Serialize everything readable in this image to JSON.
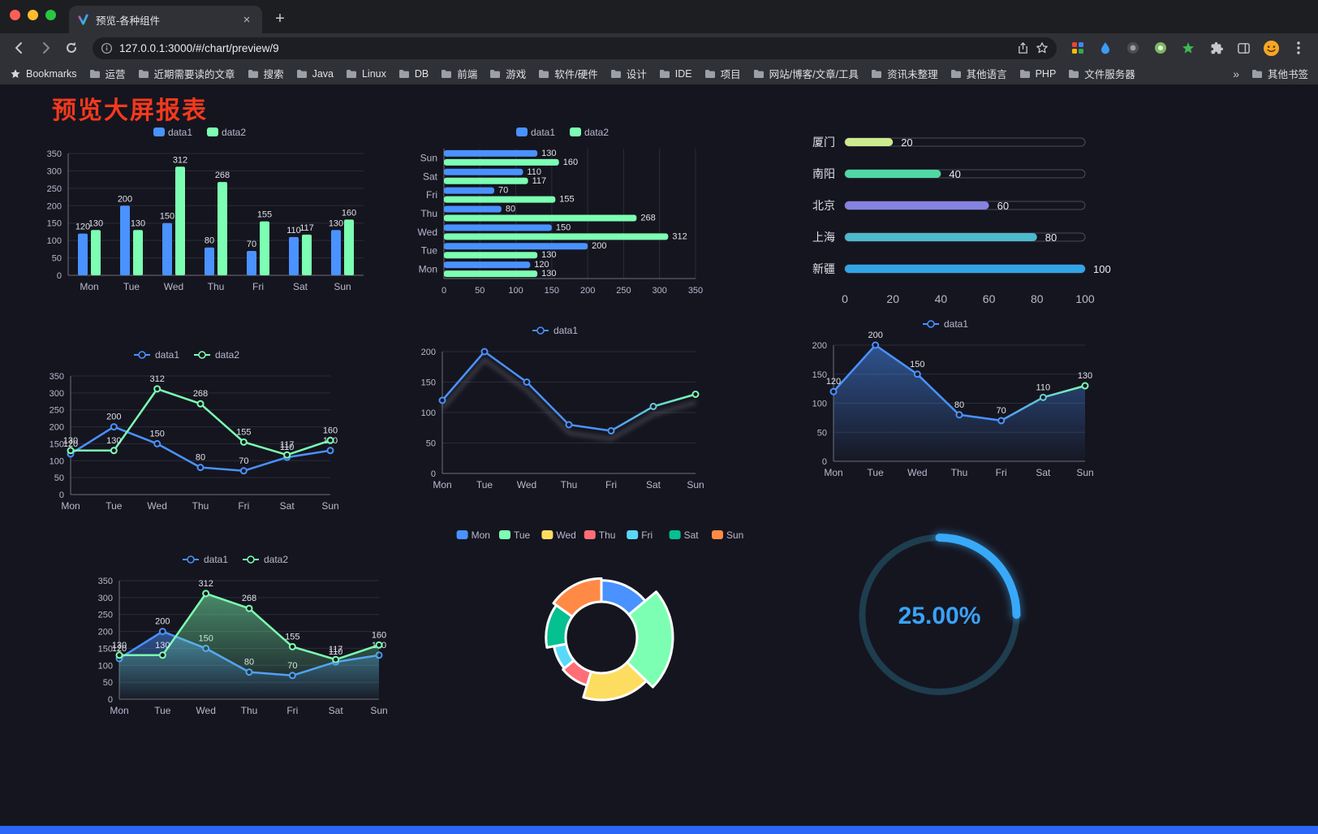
{
  "browser": {
    "tab_title": "预览-各种组件",
    "url": "127.0.0.1:3000/#/chart/preview/9",
    "bookmarks": {
      "label": "Bookmarks",
      "items": [
        "运营",
        "近期需要读的文章",
        "搜索",
        "Java",
        "Linux",
        "DB",
        "前端",
        "游戏",
        "软件/硬件",
        "设计",
        "IDE",
        "项目",
        "网站/博客/文章/工具",
        "资讯未整理",
        "其他语言",
        "PHP",
        "文件服务器"
      ],
      "overflow": "»",
      "other": "其他书签"
    }
  },
  "page": {
    "title": "预览大屏报表"
  },
  "chart_data": [
    {
      "id": "bar-grouped",
      "type": "bar",
      "categories": [
        "Mon",
        "Tue",
        "Wed",
        "Thu",
        "Fri",
        "Sat",
        "Sun"
      ],
      "series": [
        {
          "name": "data1",
          "color": "#4992ff",
          "values": [
            120,
            200,
            150,
            80,
            70,
            110,
            130
          ]
        },
        {
          "name": "data2",
          "color": "#7cffb2",
          "values": [
            130,
            130,
            312,
            268,
            155,
            117,
            160
          ]
        }
      ],
      "ylim": [
        0,
        350
      ],
      "ytick": 50,
      "legend_position": "top",
      "grid": true
    },
    {
      "id": "bar-horizontal",
      "type": "hbar",
      "categories": [
        "Mon",
        "Tue",
        "Wed",
        "Thu",
        "Fri",
        "Sat",
        "Sun"
      ],
      "series": [
        {
          "name": "data1",
          "color": "#4992ff",
          "values": [
            120,
            200,
            150,
            80,
            70,
            110,
            130
          ]
        },
        {
          "name": "data2",
          "color": "#7cffb2",
          "values": [
            130,
            130,
            312,
            268,
            155,
            117,
            160
          ]
        }
      ],
      "xlim": [
        0,
        350
      ],
      "xtick": 50,
      "legend_position": "top"
    },
    {
      "id": "progress-bars",
      "type": "progress",
      "max": 100,
      "items": [
        {
          "label": "厦门",
          "value": 20,
          "color": "#cdeb8e"
        },
        {
          "label": "南阳",
          "value": 40,
          "color": "#4fd9a4"
        },
        {
          "label": "北京",
          "value": 60,
          "color": "#8583e1"
        },
        {
          "label": "上海",
          "value": 80,
          "color": "#4db9cd"
        },
        {
          "label": "新疆",
          "value": 100,
          "color": "#31a5e8"
        }
      ],
      "xticks": [
        0,
        20,
        40,
        60,
        80,
        100
      ]
    },
    {
      "id": "line-two-series",
      "type": "line",
      "categories": [
        "Mon",
        "Tue",
        "Wed",
        "Thu",
        "Fri",
        "Sat",
        "Sun"
      ],
      "series": [
        {
          "name": "data1",
          "color": "#4992ff",
          "values": [
            120,
            200,
            150,
            80,
            70,
            110,
            130
          ],
          "labels": true
        },
        {
          "name": "data2",
          "color": "#7cffb2",
          "values": [
            130,
            130,
            312,
            268,
            155,
            117,
            160
          ],
          "labels": true
        }
      ],
      "ylim": [
        0,
        350
      ],
      "ytick": 50
    },
    {
      "id": "line-gradient-shadow",
      "type": "line",
      "categories": [
        "Mon",
        "Tue",
        "Wed",
        "Thu",
        "Fri",
        "Sat",
        "Sun"
      ],
      "series": [
        {
          "name": "data1",
          "gradient": [
            "#4992ff",
            "#7cffb2"
          ],
          "values": [
            120,
            200,
            150,
            80,
            70,
            110,
            130
          ],
          "labels": false,
          "shadow": true
        }
      ],
      "ylim": [
        0,
        200
      ],
      "ytick": 50
    },
    {
      "id": "area-single",
      "type": "line",
      "categories": [
        "Mon",
        "Tue",
        "Wed",
        "Thu",
        "Fri",
        "Sat",
        "Sun"
      ],
      "series": [
        {
          "name": "data1",
          "gradient": [
            "#4992ff",
            "#7cffb2"
          ],
          "values": [
            120,
            200,
            150,
            80,
            70,
            110,
            130
          ],
          "labels": true,
          "area": true,
          "areaColor": "#4992ff"
        }
      ],
      "ylim": [
        0,
        200
      ],
      "ytick": 50
    },
    {
      "id": "area-two-series",
      "type": "line",
      "categories": [
        "Mon",
        "Tue",
        "Wed",
        "Thu",
        "Fri",
        "Sat",
        "Sun"
      ],
      "series": [
        {
          "name": "data1",
          "color": "#4992ff",
          "values": [
            120,
            200,
            150,
            80,
            70,
            110,
            130
          ],
          "labels": true,
          "area": true,
          "areaColor": "#4992ff"
        },
        {
          "name": "data2",
          "color": "#7cffb2",
          "values": [
            130,
            130,
            312,
            268,
            155,
            117,
            160
          ],
          "labels": true,
          "area": true,
          "areaColor": "#7cffb2"
        }
      ],
      "ylim": [
        0,
        350
      ],
      "ytick": 50
    },
    {
      "id": "donut-rose",
      "type": "pie",
      "categories": [
        "Mon",
        "Tue",
        "Wed",
        "Thu",
        "Fri",
        "Sat",
        "Sun"
      ],
      "values": [
        120,
        200,
        150,
        80,
        70,
        110,
        130
      ],
      "colors": [
        "#4992ff",
        "#7cffb2",
        "#fddd60",
        "#ff6e76",
        "#58d9f9",
        "#05c091",
        "#ff8a45"
      ]
    },
    {
      "id": "gauge-percent",
      "type": "gauge",
      "value": 25,
      "label": "25.00%",
      "color": "#38a9f8",
      "track_color": "#1e3d4f"
    }
  ]
}
